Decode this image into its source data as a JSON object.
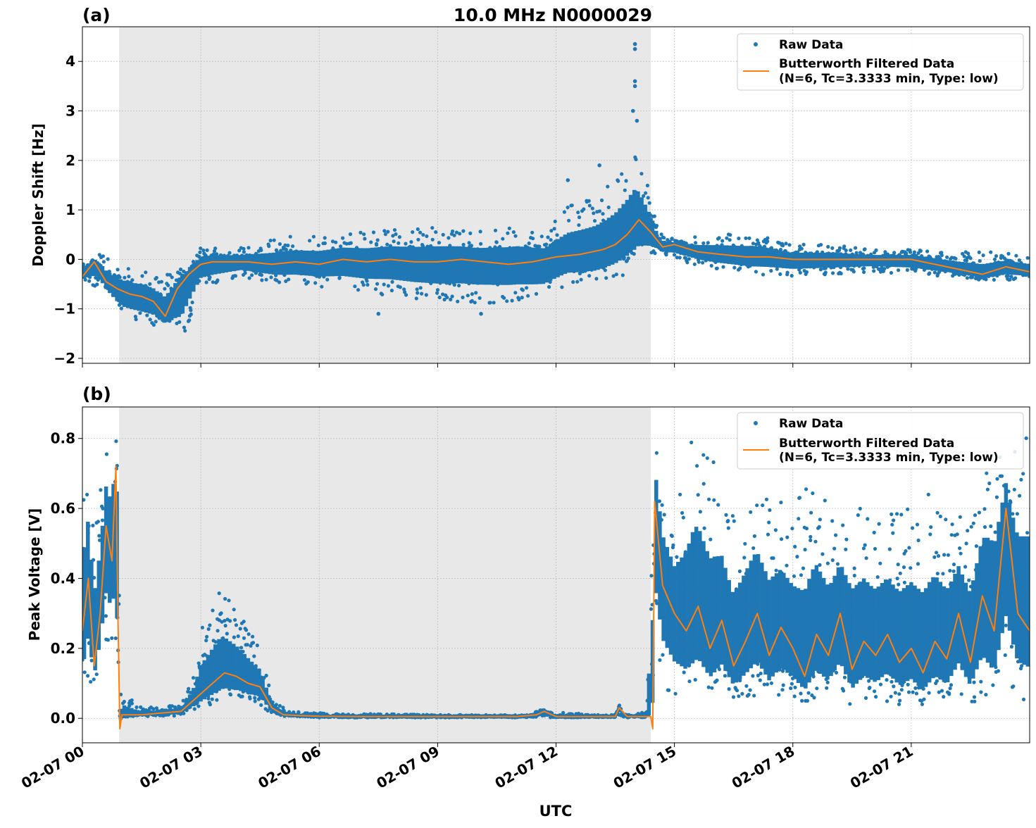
{
  "figure": {
    "title": "10.0 MHz N0000029",
    "xlabel": "UTC",
    "colors": {
      "raw": "#1f77b4",
      "filtered": "#ff7f0e",
      "night_shade": "#e8e8e8",
      "grid": "#b0b0b0"
    }
  },
  "chart_data": [
    {
      "type": "scatter",
      "panel_label": "(a)",
      "ylabel": "Doppler Shift [Hz]",
      "xlim": [
        0,
        24
      ],
      "ylim": [
        -2.1,
        4.7
      ],
      "x_ticks": [
        0,
        3,
        6,
        9,
        12,
        15,
        18,
        21
      ],
      "x_tick_labels": [
        "02-07 00",
        "02-07 03",
        "02-07 06",
        "02-07 09",
        "02-07 12",
        "02-07 15",
        "02-07 18",
        "02-07 21"
      ],
      "y_ticks": [
        -2,
        -1,
        0,
        1,
        2,
        3,
        4
      ],
      "y_tick_labels": [
        "−2",
        "−1",
        "0",
        "1",
        "2",
        "3",
        "4"
      ],
      "shaded_x_range": [
        0.93,
        14.4
      ],
      "grid": true,
      "legend_placement": "top-right",
      "legend": [
        "Raw Data",
        "Butterworth Filtered Data",
        "(N=6, Tc=3.3333 min, Type: low)"
      ],
      "series": [
        {
          "name": "Butterworth Filtered Data",
          "x": [
            0,
            0.3,
            0.6,
            0.9,
            1.2,
            1.5,
            1.8,
            2.1,
            2.4,
            2.7,
            3.0,
            3.3,
            3.6,
            4.2,
            4.8,
            5.4,
            6.0,
            6.6,
            7.2,
            7.8,
            8.4,
            9.0,
            9.6,
            10.2,
            10.8,
            11.4,
            12.0,
            12.6,
            13.2,
            13.5,
            13.8,
            14.1,
            14.4,
            14.7,
            15.0,
            15.6,
            16.2,
            16.8,
            17.4,
            18.0,
            18.6,
            19.2,
            19.8,
            20.4,
            21.0,
            21.6,
            22.2,
            22.8,
            23.4,
            24.0
          ],
          "y": [
            -0.35,
            -0.05,
            -0.45,
            -0.6,
            -0.7,
            -0.75,
            -0.85,
            -1.15,
            -0.6,
            -0.3,
            -0.1,
            -0.05,
            -0.05,
            -0.05,
            -0.1,
            -0.05,
            -0.1,
            0.0,
            -0.05,
            0.0,
            -0.05,
            -0.05,
            0.0,
            -0.05,
            -0.1,
            -0.05,
            0.05,
            0.1,
            0.2,
            0.3,
            0.5,
            0.8,
            0.55,
            0.25,
            0.3,
            0.15,
            0.1,
            0.05,
            0.05,
            0.0,
            0.0,
            0.0,
            0.0,
            0.0,
            0.0,
            -0.1,
            -0.2,
            -0.3,
            -0.15,
            -0.25
          ]
        },
        {
          "name": "Raw Data",
          "envelope_x": [
            0,
            0.5,
            1.0,
            1.5,
            2.0,
            2.5,
            3.0,
            4.0,
            5.0,
            6.0,
            7.0,
            8.0,
            9.0,
            10.0,
            11.0,
            11.7,
            12.3,
            13.0,
            13.5,
            14.0,
            14.4,
            14.6,
            15.0,
            16.0,
            17.0,
            18.0,
            19.0,
            20.0,
            21.0,
            22.0,
            23.0,
            24.0
          ],
          "envelope_low": [
            -0.45,
            -0.6,
            -1.2,
            -1.3,
            -1.35,
            -1.7,
            -0.6,
            -0.35,
            -0.5,
            -0.55,
            -0.65,
            -0.75,
            -0.85,
            -0.9,
            -0.85,
            -0.9,
            -0.55,
            -0.55,
            -0.4,
            -0.2,
            0.05,
            0.1,
            0.0,
            -0.2,
            -0.3,
            -0.35,
            -0.3,
            -0.25,
            -0.3,
            -0.35,
            -0.45,
            -0.4
          ],
          "envelope_high": [
            0.05,
            0.1,
            -0.15,
            -0.2,
            -0.3,
            -0.2,
            0.25,
            0.25,
            0.45,
            0.5,
            0.55,
            0.6,
            0.65,
            0.55,
            0.7,
            0.5,
            1.1,
            1.3,
            1.7,
            2.3,
            1.3,
            0.55,
            0.4,
            0.5,
            0.55,
            0.3,
            0.3,
            0.2,
            0.2,
            0.15,
            0.15,
            0.1
          ],
          "outliers": [
            [
              14.0,
              4.35
            ],
            [
              14.0,
              4.25
            ],
            [
              14.0,
              3.6
            ],
            [
              14.0,
              3.5
            ],
            [
              13.95,
              3.0
            ],
            [
              14.05,
              2.8
            ],
            [
              13.1,
              1.9
            ],
            [
              12.3,
              1.6
            ],
            [
              10.1,
              -1.1
            ],
            [
              7.5,
              -1.1
            ]
          ]
        }
      ]
    },
    {
      "type": "scatter",
      "panel_label": "(b)",
      "ylabel": "Peak Voltage [V]",
      "xlim": [
        0,
        24
      ],
      "ylim": [
        -0.07,
        0.89
      ],
      "x_ticks": [
        0,
        3,
        6,
        9,
        12,
        15,
        18,
        21
      ],
      "x_tick_labels": [
        "02-07 00",
        "02-07 03",
        "02-07 06",
        "02-07 09",
        "02-07 12",
        "02-07 15",
        "02-07 18",
        "02-07 21"
      ],
      "y_ticks": [
        0.0,
        0.2,
        0.4,
        0.6,
        0.8
      ],
      "y_tick_labels": [
        "0.0",
        "0.2",
        "0.4",
        "0.6",
        "0.8"
      ],
      "shaded_x_range": [
        0.93,
        14.4
      ],
      "grid": true,
      "legend_placement": "top-right",
      "legend": [
        "Raw Data",
        "Butterworth Filtered Data",
        "(N=6, Tc=3.3333 min, Type: low)"
      ],
      "series": [
        {
          "name": "Butterworth Filtered Data",
          "x": [
            0,
            0.15,
            0.3,
            0.45,
            0.6,
            0.75,
            0.85,
            0.9,
            0.95,
            1.0,
            1.5,
            2.0,
            2.5,
            2.8,
            3.0,
            3.3,
            3.6,
            3.9,
            4.2,
            4.5,
            4.8,
            5.1,
            5.5,
            6.0,
            7.0,
            8.0,
            9.0,
            10.0,
            11.0,
            11.5,
            11.7,
            12.0,
            13.0,
            13.5,
            13.6,
            13.8,
            14.3,
            14.4,
            14.45,
            14.5,
            14.7,
            15.0,
            15.3,
            15.6,
            15.9,
            16.2,
            16.5,
            16.8,
            17.1,
            17.4,
            17.7,
            18.0,
            18.3,
            18.6,
            18.9,
            19.2,
            19.5,
            19.8,
            20.1,
            20.4,
            20.7,
            21.0,
            21.3,
            21.6,
            21.9,
            22.2,
            22.5,
            22.8,
            23.1,
            23.4,
            23.7,
            24.0
          ],
          "y": [
            0.25,
            0.4,
            0.15,
            0.3,
            0.55,
            0.45,
            0.72,
            0.3,
            -0.03,
            0.01,
            0.01,
            0.015,
            0.02,
            0.05,
            0.07,
            0.1,
            0.13,
            0.12,
            0.1,
            0.09,
            0.03,
            0.01,
            0.008,
            0.006,
            0.005,
            0.005,
            0.005,
            0.005,
            0.005,
            0.01,
            0.02,
            0.005,
            0.005,
            0.005,
            0.03,
            0.005,
            0.005,
            0.005,
            -0.03,
            0.62,
            0.38,
            0.3,
            0.25,
            0.32,
            0.2,
            0.28,
            0.15,
            0.22,
            0.3,
            0.18,
            0.26,
            0.2,
            0.12,
            0.24,
            0.18,
            0.3,
            0.14,
            0.22,
            0.18,
            0.24,
            0.16,
            0.2,
            0.13,
            0.22,
            0.17,
            0.3,
            0.16,
            0.35,
            0.25,
            0.6,
            0.3,
            0.25
          ]
        },
        {
          "name": "Raw Data",
          "envelope_x": [
            0,
            0.15,
            0.3,
            0.45,
            0.6,
            0.75,
            0.9,
            0.95,
            1.5,
            2.5,
            2.8,
            3.0,
            3.5,
            4.0,
            4.5,
            4.8,
            5.2,
            6.0,
            9.0,
            11.4,
            11.6,
            11.8,
            13.0,
            13.5,
            13.6,
            13.7,
            14.3,
            14.4,
            14.5,
            14.7,
            15.0,
            15.5,
            16.0,
            16.5,
            17.0,
            17.5,
            18.0,
            18.5,
            19.0,
            19.5,
            20.0,
            20.5,
            21.0,
            21.5,
            22.0,
            22.5,
            23.0,
            23.5,
            24.0
          ],
          "envelope_low": [
            0.05,
            0.1,
            0.1,
            0.15,
            0.2,
            0.2,
            0.1,
            0.005,
            0.005,
            0.005,
            0.02,
            0.03,
            0.05,
            0.05,
            0.04,
            0.01,
            0.005,
            0.002,
            0.002,
            0.002,
            0.005,
            0.002,
            0.002,
            0.002,
            0.01,
            0.002,
            0.002,
            0.02,
            0.2,
            0.1,
            0.05,
            0.05,
            0.05,
            0.05,
            0.05,
            0.05,
            0.05,
            0.05,
            0.05,
            0.04,
            0.04,
            0.04,
            0.04,
            0.04,
            0.04,
            0.04,
            0.04,
            0.04,
            0.06
          ],
          "envelope_high": [
            0.7,
            0.78,
            0.6,
            0.7,
            0.8,
            0.82,
            0.84,
            0.08,
            0.03,
            0.04,
            0.12,
            0.25,
            0.37,
            0.3,
            0.2,
            0.06,
            0.02,
            0.015,
            0.01,
            0.01,
            0.03,
            0.02,
            0.01,
            0.01,
            0.04,
            0.01,
            0.02,
            0.5,
            0.84,
            0.7,
            0.6,
            0.85,
            0.75,
            0.6,
            0.7,
            0.65,
            0.6,
            0.7,
            0.6,
            0.65,
            0.6,
            0.6,
            0.62,
            0.65,
            0.6,
            0.6,
            0.8,
            0.75,
            0.85
          ]
        }
      ]
    }
  ]
}
